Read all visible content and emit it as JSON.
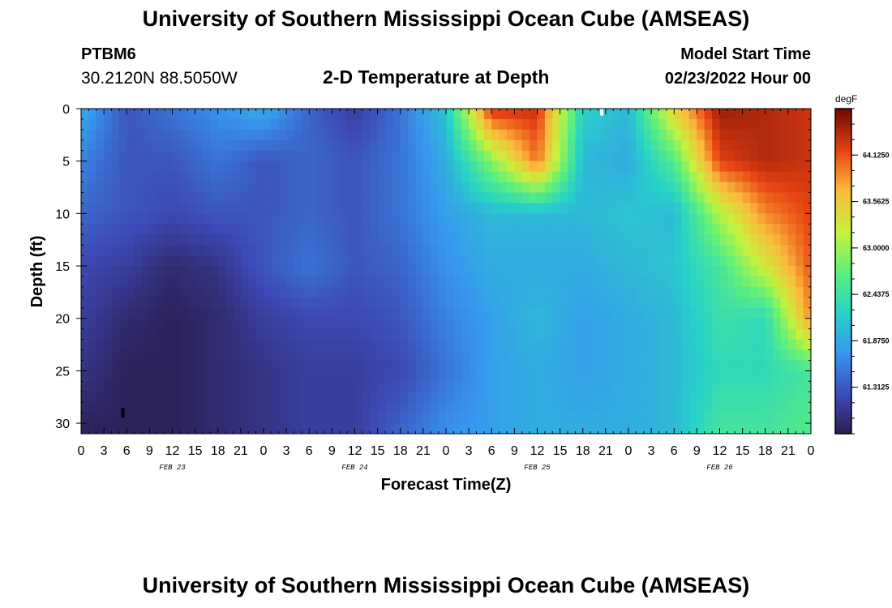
{
  "header": {
    "title": "University of Southern Mississippi Ocean Cube (AMSEAS)",
    "station_id": "PTBM6",
    "coordinates": "30.2120N  88.5050W",
    "subtitle": "2-D Temperature at Depth",
    "model_start_label": "Model Start Time",
    "model_start_time": "02/23/2022 Hour 00"
  },
  "footer": {
    "title": "University of Southern Mississippi Ocean Cube (AMSEAS)"
  },
  "chart_data": {
    "type": "heatmap",
    "title": "2-D Temperature at Depth",
    "xlabel": "Forecast Time(Z)",
    "ylabel": "Depth (ft)",
    "xlim": [
      0,
      96
    ],
    "ylim": [
      31,
      0
    ],
    "x_tick_labels": [
      "0",
      "3",
      "6",
      "9",
      "12",
      "15",
      "18",
      "21",
      "0",
      "3",
      "6",
      "9",
      "12",
      "15",
      "18",
      "21",
      "0",
      "3",
      "6",
      "9",
      "12",
      "15",
      "18",
      "21",
      "0",
      "3",
      "6",
      "9",
      "12",
      "15",
      "18",
      "21",
      "0"
    ],
    "day_labels": [
      "FEB 23",
      "FEB 24",
      "FEB 25",
      "FEB 26"
    ],
    "y_ticks": [
      0,
      5,
      10,
      15,
      20,
      25,
      30
    ],
    "colorbar": {
      "unit": "degF",
      "ticks": [
        "64.1250",
        "63.5625",
        "63.0000",
        "62.4375",
        "61.8750",
        "61.3125"
      ],
      "tick_values": [
        64.125,
        63.5625,
        63.0,
        62.4375,
        61.875,
        61.3125
      ],
      "range": [
        60.75,
        64.6875
      ]
    },
    "depths_ft": [
      0,
      5,
      10,
      15,
      20,
      25,
      31
    ],
    "hours": [
      0,
      6,
      12,
      18,
      24,
      30,
      36,
      42,
      48,
      54,
      60,
      66,
      72,
      78,
      84,
      90,
      96
    ],
    "temperature_degF": [
      [
        61.9,
        61.3,
        61.5,
        61.7,
        61.9,
        61.4,
        61.1,
        61.5,
        62.1,
        64.3,
        64.3,
        62.2,
        62.0,
        63.5,
        64.5,
        64.4,
        64.3
      ],
      [
        61.6,
        61.3,
        61.3,
        61.5,
        61.3,
        61.4,
        61.3,
        61.5,
        61.9,
        62.9,
        64.0,
        62.0,
        61.9,
        62.6,
        64.2,
        64.4,
        64.3
      ],
      [
        61.4,
        61.3,
        61.2,
        61.3,
        61.3,
        61.4,
        61.3,
        61.5,
        61.8,
        62.0,
        62.0,
        62.0,
        62.1,
        62.0,
        63.1,
        63.9,
        64.2
      ],
      [
        61.2,
        61.1,
        60.9,
        61.0,
        61.3,
        61.5,
        61.3,
        61.4,
        61.7,
        61.9,
        61.9,
        61.9,
        62.0,
        62.1,
        62.5,
        63.3,
        64.1
      ],
      [
        61.1,
        60.9,
        60.8,
        60.9,
        61.1,
        61.2,
        61.2,
        61.3,
        61.6,
        61.8,
        62.0,
        61.8,
        61.9,
        62.0,
        62.4,
        62.3,
        63.9
      ],
      [
        61.0,
        60.8,
        60.8,
        60.9,
        61.0,
        61.1,
        61.1,
        61.2,
        61.5,
        61.8,
        61.9,
        61.8,
        61.9,
        62.0,
        62.3,
        62.3,
        62.5
      ],
      [
        60.8,
        60.8,
        60.8,
        60.9,
        61.0,
        61.1,
        61.1,
        61.4,
        61.7,
        61.8,
        61.9,
        61.9,
        61.9,
        62.0,
        62.5,
        62.5,
        62.6
      ]
    ],
    "markers": [
      {
        "hour": 5.5,
        "depth_ft": 29,
        "color": "#000000"
      },
      {
        "hour": 68.5,
        "depth_ft": 0.2,
        "color": "#ffffff"
      }
    ],
    "grid": false,
    "legend": "none"
  }
}
